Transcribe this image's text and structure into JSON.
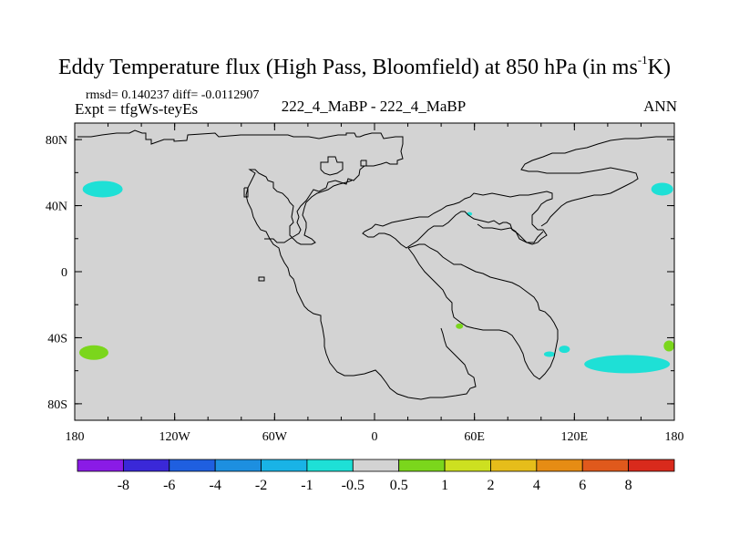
{
  "title": {
    "main": "Eddy Temperature flux (High Pass, Bloomfield) at 850 hPa (in ms",
    "superscript": "-1",
    "unit_tail": "K)"
  },
  "stats_line": "rmsd= 0.140237 diff= -0.0112907",
  "expt_line": "Expt = tfgWs-teyEs",
  "center_label": "222_4_MaBP - 222_4_MaBP",
  "season_label": "ANN",
  "chart_data": {
    "type": "heatmap",
    "projection": "cylindrical equidistant",
    "x_ticks": [
      "180",
      "120W",
      "60W",
      "0",
      "60E",
      "120E",
      "180"
    ],
    "x_tick_values": [
      -180,
      -120,
      -60,
      0,
      60,
      120,
      180
    ],
    "y_ticks": [
      "80N",
      "40N",
      "0",
      "40S",
      "80S"
    ],
    "y_tick_values": [
      80,
      40,
      0,
      -40,
      -80
    ],
    "xlim": [
      -180,
      180
    ],
    "ylim": [
      -90,
      90
    ],
    "field_background_color": "#d3d3d3",
    "field_background_class": "-0.5 to 0.5",
    "colorbar": {
      "labels": [
        "-8",
        "-6",
        "-4",
        "-2",
        "-1",
        "-0.5",
        "0.5",
        "1",
        "2",
        "4",
        "6",
        "8"
      ],
      "colors": [
        "#8a1be6",
        "#3a28d8",
        "#1f5fe0",
        "#1d8fe0",
        "#19b3e6",
        "#1ee0d6",
        "#d3d3d3",
        "#7bd61c",
        "#cde020",
        "#e6bd1a",
        "#e68c14",
        "#e0591c",
        "#d92a1c"
      ]
    },
    "anomaly_regions": [
      {
        "name": "north-atlantic-west",
        "class": "-1 to -0.5",
        "color": "#1ee0d6",
        "approx_lon": -172,
        "approx_lat": 50
      },
      {
        "name": "north-pacific-east",
        "class": "-1 to -0.5",
        "color": "#1ee0d6",
        "approx_lon": 176,
        "approx_lat": 50
      },
      {
        "name": "south-west-edge",
        "class": "0.5 to 1",
        "color": "#7bd61c",
        "approx_lon": -174,
        "approx_lat": -49
      },
      {
        "name": "south-east-edge",
        "class": "0.5 to 1",
        "color": "#7bd61c",
        "approx_lon": 178,
        "approx_lat": -45
      },
      {
        "name": "indian-ocean",
        "class": "0.5 to 1",
        "color": "#7bd61c",
        "approx_lon": 51,
        "approx_lat": -33
      },
      {
        "name": "southern-ocean-east",
        "class": "-1 to -0.5",
        "color": "#1ee0d6",
        "approx_lon": 150,
        "approx_lat": -56
      },
      {
        "name": "southern-ocean-small-1",
        "class": "-1 to -0.5",
        "color": "#1ee0d6",
        "approx_lon": 105,
        "approx_lat": -50
      },
      {
        "name": "southern-ocean-small-2",
        "class": "-1 to -0.5",
        "color": "#1ee0d6",
        "approx_lon": 114,
        "approx_lat": -47
      },
      {
        "name": "asia-small",
        "class": "-1 to -0.5",
        "color": "#1ee0d6",
        "approx_lon": 57,
        "approx_lat": 35
      }
    ]
  }
}
